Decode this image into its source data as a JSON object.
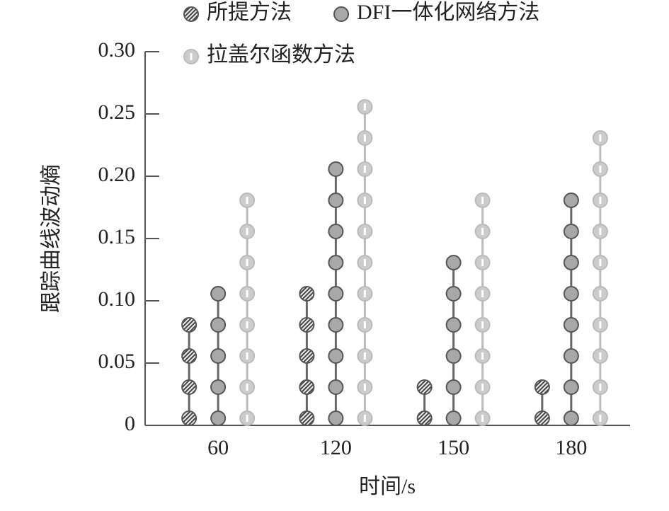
{
  "chart_data": {
    "type": "dot-stem",
    "x_label": "时间/s",
    "y_label": "跟踪曲线波动熵",
    "categories": [
      "60",
      "120",
      "150",
      "180"
    ],
    "series": [
      {
        "name": "所提方法",
        "color": "#555555",
        "values": [
          0.08,
          0.11,
          0.03,
          0.03
        ]
      },
      {
        "name": "DFI一体化网络方法",
        "color": "#a8a8a8",
        "values": [
          0.11,
          0.21,
          0.13,
          0.18
        ]
      },
      {
        "name": "拉盖尔函数方法",
        "color": "#cccccc",
        "values": [
          0.18,
          0.26,
          0.18,
          0.23
        ]
      }
    ],
    "ylim": [
      0,
      0.3
    ],
    "yticks": [
      0,
      {
        "value": 0.05,
        "label": "0.05"
      },
      {
        "value": 0.1,
        "label": "0.10"
      },
      {
        "value": 0.15,
        "label": "0.15"
      },
      {
        "value": 0.2,
        "label": "0.20"
      },
      {
        "value": 0.25,
        "label": "0.25"
      },
      {
        "value": 0.3,
        "label": "0.30"
      }
    ]
  }
}
